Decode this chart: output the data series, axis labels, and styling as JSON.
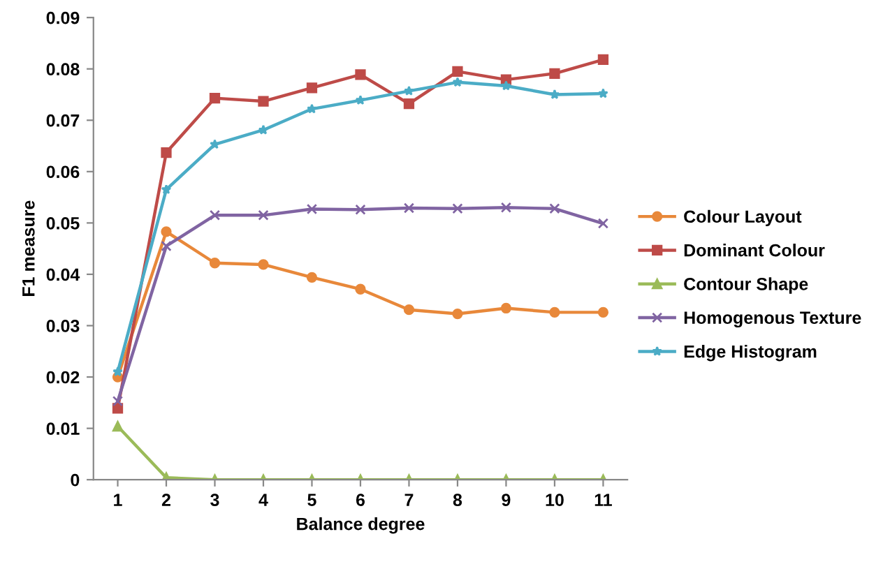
{
  "chart_data": {
    "type": "line",
    "xlabel": "Balance degree",
    "ylabel": "F1 measure",
    "categories": [
      "1",
      "2",
      "3",
      "4",
      "5",
      "6",
      "7",
      "8",
      "9",
      "10",
      "11"
    ],
    "ylim": [
      0,
      0.09
    ],
    "yticks": [
      {
        "value": 0,
        "label": "0"
      },
      {
        "value": 0.01,
        "label": "0.01"
      },
      {
        "value": 0.02,
        "label": "0.02"
      },
      {
        "value": 0.03,
        "label": "0.03"
      },
      {
        "value": 0.04,
        "label": "0.04"
      },
      {
        "value": 0.05,
        "label": "0.05"
      },
      {
        "value": 0.06,
        "label": "0.06"
      },
      {
        "value": 0.07,
        "label": "0.07"
      },
      {
        "value": 0.08,
        "label": "0.08"
      },
      {
        "value": 0.09,
        "label": "0.09"
      }
    ],
    "grid": false,
    "legend": "right",
    "line_style": "solid",
    "series": [
      {
        "name": "Colour Layout",
        "color": "#e8883a",
        "marker": "circle",
        "values": [
          0.02,
          0.0483,
          0.0422,
          0.0419,
          0.0394,
          0.0371,
          0.0331,
          0.0323,
          0.0334,
          0.0326,
          0.0326
        ]
      },
      {
        "name": "Dominant Colour",
        "color": "#be4b48",
        "marker": "square",
        "values": [
          0.0139,
          0.0637,
          0.0743,
          0.0737,
          0.0763,
          0.0789,
          0.0732,
          0.0795,
          0.0779,
          0.0791,
          0.0818
        ]
      },
      {
        "name": "Contour Shape",
        "color": "#9bbb59",
        "marker": "triangle",
        "values": [
          0.0104,
          0.0004,
          0,
          0,
          0,
          0,
          0,
          0,
          0,
          0,
          0
        ]
      },
      {
        "name": "Homogenous Texture",
        "color": "#8064a2",
        "marker": "cross",
        "values": [
          0.0153,
          0.0455,
          0.0515,
          0.0515,
          0.0527,
          0.0526,
          0.0529,
          0.0528,
          0.053,
          0.0528,
          0.0499
        ]
      },
      {
        "name": "Edge Histogram",
        "color": "#4bacc6",
        "marker": "star",
        "values": [
          0.021,
          0.0565,
          0.0653,
          0.0681,
          0.0722,
          0.0739,
          0.0757,
          0.0774,
          0.0767,
          0.075,
          0.0752
        ]
      }
    ]
  }
}
